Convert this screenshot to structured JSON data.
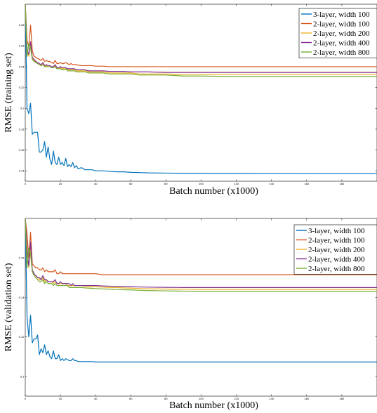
{
  "colors": {
    "blue": "#0072bd",
    "orange": "#d95319",
    "yellow": "#edb120",
    "purple": "#7e2f8e",
    "green": "#77ac30"
  },
  "chart_data": [
    {
      "type": "line",
      "xlabel": "Batch number (x1000)",
      "ylabel": "RMSE (training set)",
      "xlim": [
        0,
        200
      ],
      "ylim": [
        0.13,
        0.3
      ],
      "xticks": [
        "0",
        "20",
        "40",
        "60",
        "80",
        "100",
        "120",
        "140",
        "160",
        "180"
      ],
      "yticks": [
        "0.14",
        "0.16",
        "0.18",
        "0.2",
        "0.22",
        "0.24",
        "0.26",
        "0.28"
      ],
      "grid": false,
      "legend_position": "top-right",
      "x": [
        0,
        1,
        2,
        3,
        4,
        5,
        6,
        7,
        8,
        9,
        10,
        11,
        12,
        13,
        14,
        15,
        16,
        17,
        18,
        19,
        20,
        21,
        22,
        23,
        24,
        25,
        26,
        27,
        28,
        29,
        30,
        32,
        34,
        36,
        38,
        40,
        44,
        48,
        52,
        56,
        60,
        65,
        70,
        80,
        90,
        100,
        120,
        140,
        160,
        180,
        200
      ],
      "series": [
        {
          "name": "3-layer, width 100",
          "color_key": "blue",
          "values": [
            0.3,
            0.2,
            0.195,
            0.205,
            0.175,
            0.177,
            0.177,
            0.177,
            0.158,
            0.158,
            0.16,
            0.168,
            0.153,
            0.163,
            0.151,
            0.146,
            0.159,
            0.148,
            0.146,
            0.153,
            0.146,
            0.148,
            0.145,
            0.152,
            0.144,
            0.146,
            0.144,
            0.148,
            0.143,
            0.145,
            0.142,
            0.143,
            0.141,
            0.141,
            0.141,
            0.14,
            0.14,
            0.1395,
            0.139,
            0.139,
            0.1385,
            0.1383,
            0.138,
            0.1378,
            0.1376,
            0.1375,
            0.1374,
            0.1373,
            0.1372,
            0.1372,
            0.1372
          ]
        },
        {
          "name": "2-layer, width 100",
          "color_key": "orange",
          "values": [
            0.3,
            0.265,
            0.26,
            0.28,
            0.255,
            0.25,
            0.249,
            0.248,
            0.247,
            0.246,
            0.248,
            0.245,
            0.246,
            0.245,
            0.245,
            0.244,
            0.243,
            0.246,
            0.243,
            0.243,
            0.244,
            0.243,
            0.243,
            0.244,
            0.243,
            0.242,
            0.243,
            0.242,
            0.242,
            0.242,
            0.2415,
            0.241,
            0.241,
            0.241,
            0.241,
            0.2405,
            0.2405,
            0.24,
            0.24,
            0.24,
            0.24,
            0.24,
            0.24,
            0.24,
            0.24,
            0.24,
            0.24,
            0.24,
            0.24,
            0.24,
            0.24
          ]
        },
        {
          "name": "2-layer, width 200",
          "color_key": "yellow",
          "values": [
            0.3,
            0.255,
            0.25,
            0.262,
            0.248,
            0.246,
            0.244,
            0.243,
            0.242,
            0.241,
            0.243,
            0.24,
            0.241,
            0.24,
            0.24,
            0.239,
            0.239,
            0.241,
            0.238,
            0.238,
            0.239,
            0.238,
            0.238,
            0.238,
            0.237,
            0.237,
            0.237,
            0.237,
            0.237,
            0.236,
            0.236,
            0.236,
            0.236,
            0.235,
            0.235,
            0.235,
            0.235,
            0.234,
            0.234,
            0.234,
            0.234,
            0.233,
            0.233,
            0.233,
            0.2325,
            0.2325,
            0.2325,
            0.2325,
            0.2325,
            0.2325,
            0.2325
          ]
        },
        {
          "name": "2-layer, width 400",
          "color_key": "purple",
          "values": [
            0.3,
            0.256,
            0.252,
            0.264,
            0.249,
            0.247,
            0.245,
            0.244,
            0.243,
            0.242,
            0.244,
            0.241,
            0.242,
            0.241,
            0.241,
            0.24,
            0.24,
            0.242,
            0.239,
            0.239,
            0.24,
            0.239,
            0.239,
            0.239,
            0.238,
            0.238,
            0.238,
            0.238,
            0.238,
            0.237,
            0.237,
            0.237,
            0.237,
            0.236,
            0.236,
            0.236,
            0.236,
            0.2355,
            0.2355,
            0.2355,
            0.235,
            0.235,
            0.235,
            0.2345,
            0.2345,
            0.2345,
            0.2345,
            0.2345,
            0.2345,
            0.2345,
            0.2345
          ]
        },
        {
          "name": "2-layer, width 800",
          "color_key": "green",
          "values": [
            0.3,
            0.25,
            0.262,
            0.258,
            0.247,
            0.245,
            0.244,
            0.243,
            0.242,
            0.241,
            0.242,
            0.24,
            0.24,
            0.24,
            0.24,
            0.239,
            0.239,
            0.24,
            0.238,
            0.238,
            0.238,
            0.237,
            0.237,
            0.238,
            0.236,
            0.236,
            0.236,
            0.236,
            0.236,
            0.235,
            0.235,
            0.235,
            0.235,
            0.234,
            0.234,
            0.234,
            0.234,
            0.233,
            0.233,
            0.233,
            0.233,
            0.232,
            0.232,
            0.232,
            0.231,
            0.231,
            0.2305,
            0.2305,
            0.2305,
            0.2305,
            0.2305
          ]
        }
      ]
    },
    {
      "type": "line",
      "xlabel": "Batch number (x1000)",
      "ylabel": "RMSE (validation set)",
      "xlim": [
        0,
        200
      ],
      "ylim": [
        0.09,
        0.18
      ],
      "xticks": [
        "0",
        "20",
        "40",
        "60",
        "80",
        "100",
        "120",
        "140",
        "160",
        "180"
      ],
      "yticks": [
        "0.1",
        "0.12",
        "0.14",
        "0.16"
      ],
      "grid": false,
      "legend_position": "top-right",
      "x": [
        0,
        1,
        2,
        3,
        4,
        5,
        6,
        7,
        8,
        9,
        10,
        11,
        12,
        13,
        14,
        15,
        16,
        17,
        18,
        19,
        20,
        21,
        22,
        23,
        24,
        25,
        26,
        27,
        28,
        29,
        30,
        32,
        34,
        36,
        38,
        40,
        44,
        48,
        52,
        56,
        60,
        65,
        70,
        80,
        90,
        100,
        120,
        140,
        160,
        180,
        200
      ],
      "series": [
        {
          "name": "3-layer, width 100",
          "color_key": "blue",
          "values": [
            0.18,
            0.13,
            0.12,
            0.131,
            0.117,
            0.119,
            0.119,
            0.121,
            0.111,
            0.114,
            0.112,
            0.116,
            0.111,
            0.113,
            0.11,
            0.109,
            0.113,
            0.109,
            0.109,
            0.111,
            0.108,
            0.109,
            0.108,
            0.109,
            0.1085,
            0.108,
            0.108,
            0.109,
            0.108,
            0.108,
            0.1075,
            0.1075,
            0.1075,
            0.1075,
            0.1075,
            0.1073,
            0.1073,
            0.1073,
            0.1073,
            0.1073,
            0.1073,
            0.1073,
            0.1073,
            0.1073,
            0.1073,
            0.1073,
            0.1073,
            0.1073,
            0.1073,
            0.1073,
            0.1073
          ]
        },
        {
          "name": "2-layer, width 100",
          "color_key": "orange",
          "values": [
            0.18,
            0.172,
            0.16,
            0.173,
            0.157,
            0.156,
            0.155,
            0.155,
            0.154,
            0.154,
            0.155,
            0.153,
            0.154,
            0.153,
            0.153,
            0.153,
            0.153,
            0.154,
            0.152,
            0.152,
            0.153,
            0.152,
            0.152,
            0.152,
            0.152,
            0.152,
            0.152,
            0.152,
            0.152,
            0.152,
            0.152,
            0.152,
            0.152,
            0.152,
            0.152,
            0.152,
            0.1515,
            0.1515,
            0.1515,
            0.1515,
            0.1515,
            0.1515,
            0.1515,
            0.1515,
            0.1515,
            0.1515,
            0.1515,
            0.1515,
            0.1515,
            0.1515,
            0.1515
          ]
        },
        {
          "name": "2-layer, width 200",
          "color_key": "yellow",
          "values": [
            0.18,
            0.163,
            0.155,
            0.167,
            0.153,
            0.152,
            0.151,
            0.15,
            0.149,
            0.149,
            0.15,
            0.148,
            0.149,
            0.148,
            0.148,
            0.148,
            0.147,
            0.148,
            0.147,
            0.147,
            0.147,
            0.147,
            0.147,
            0.147,
            0.146,
            0.146,
            0.146,
            0.146,
            0.146,
            0.146,
            0.146,
            0.146,
            0.1455,
            0.1455,
            0.1455,
            0.1455,
            0.1452,
            0.145,
            0.145,
            0.1448,
            0.1447,
            0.1445,
            0.1444,
            0.1442,
            0.1441,
            0.144,
            0.144,
            0.144,
            0.144,
            0.144,
            0.144
          ]
        },
        {
          "name": "2-layer, width 400",
          "color_key": "purple",
          "values": [
            0.18,
            0.164,
            0.156,
            0.168,
            0.154,
            0.152,
            0.151,
            0.15,
            0.15,
            0.149,
            0.151,
            0.149,
            0.149,
            0.148,
            0.148,
            0.148,
            0.148,
            0.149,
            0.147,
            0.147,
            0.148,
            0.147,
            0.147,
            0.147,
            0.147,
            0.147,
            0.146,
            0.147,
            0.146,
            0.146,
            0.146,
            0.146,
            0.146,
            0.146,
            0.146,
            0.146,
            0.1458,
            0.1457,
            0.1456,
            0.1455,
            0.1454,
            0.1453,
            0.1452,
            0.1451,
            0.145,
            0.145,
            0.145,
            0.145,
            0.145,
            0.145,
            0.145
          ]
        },
        {
          "name": "2-layer, width 800",
          "color_key": "green",
          "values": [
            0.18,
            0.155,
            0.165,
            0.162,
            0.153,
            0.151,
            0.15,
            0.149,
            0.148,
            0.148,
            0.149,
            0.147,
            0.148,
            0.147,
            0.147,
            0.147,
            0.146,
            0.147,
            0.146,
            0.146,
            0.146,
            0.146,
            0.146,
            0.146,
            0.146,
            0.145,
            0.145,
            0.145,
            0.145,
            0.145,
            0.145,
            0.145,
            0.1448,
            0.1447,
            0.1446,
            0.1445,
            0.1443,
            0.1442,
            0.144,
            0.1439,
            0.1438,
            0.1436,
            0.1435,
            0.1433,
            0.1432,
            0.143,
            0.143,
            0.143,
            0.143,
            0.143,
            0.143
          ]
        }
      ]
    }
  ]
}
